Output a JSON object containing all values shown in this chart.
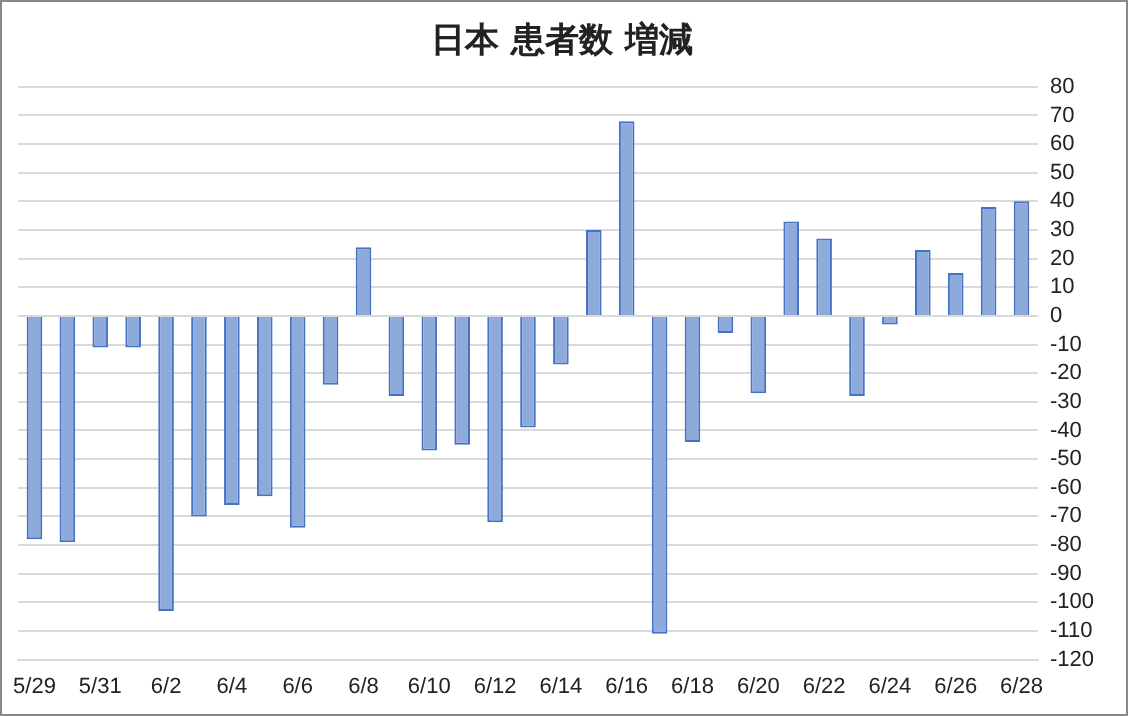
{
  "chart_data": {
    "type": "bar",
    "title": "日本 患者数 増減",
    "categories": [
      "5/29",
      null,
      "5/31",
      null,
      "6/2",
      null,
      "6/4",
      null,
      "6/6",
      null,
      "6/8",
      null,
      "6/10",
      null,
      "6/12",
      null,
      "6/14",
      null,
      "6/16",
      null,
      "6/18",
      null,
      "6/20",
      null,
      "6/22",
      null,
      "6/24",
      null,
      "6/26",
      null,
      "6/28"
    ],
    "values": [
      -78,
      -79,
      -11,
      -11,
      -103,
      -70,
      -66,
      -63,
      -74,
      -24,
      24,
      -28,
      -47,
      -45,
      -72,
      -39,
      -17,
      30,
      68,
      -111,
      -44,
      -6,
      -27,
      33,
      27,
      -28,
      -3,
      23,
      15,
      38,
      40
    ],
    "color": "#8eaadb",
    "ylim": [
      -120,
      80
    ],
    "yticks": [
      -120,
      -110,
      -100,
      -90,
      -80,
      -70,
      -60,
      -50,
      -40,
      -30,
      -20,
      -10,
      0,
      10,
      20,
      30,
      40,
      50,
      60,
      70,
      80
    ],
    "grid": "y"
  }
}
